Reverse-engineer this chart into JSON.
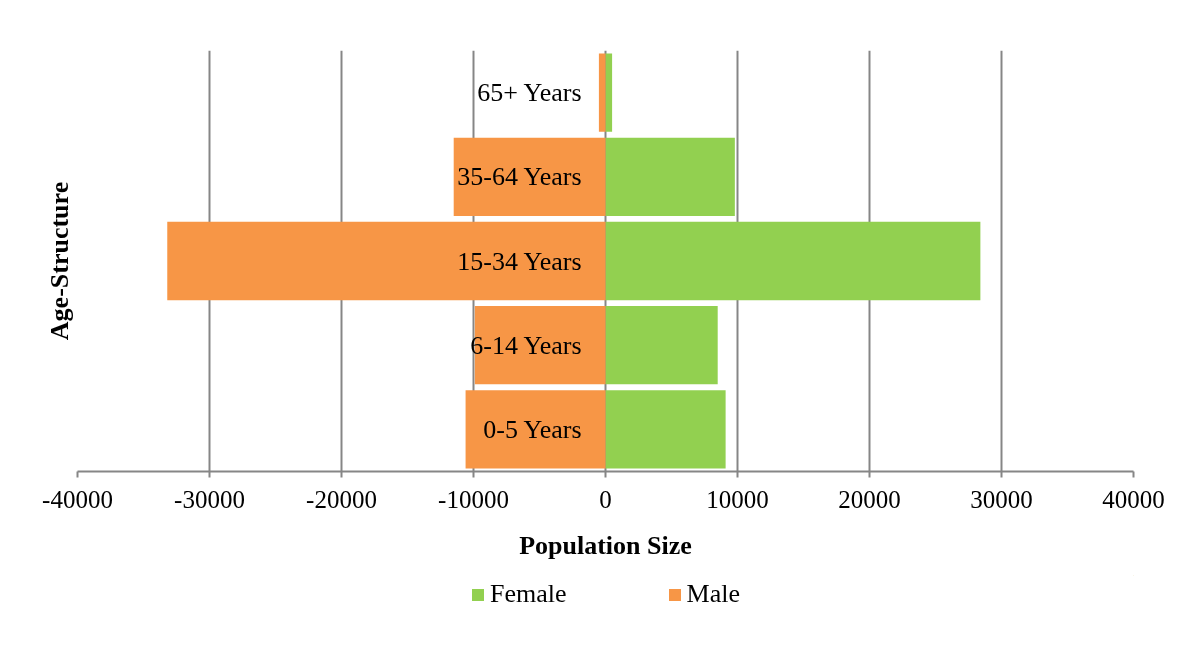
{
  "chart_data": {
    "type": "bar",
    "orientation": "horizontal",
    "stacked": true,
    "xlabel": "Population Size",
    "ylabel": "Age-Structure",
    "categories": [
      "65+ Years",
      "35-64 Years",
      "15-34 Years",
      "6-14 Years",
      "0-5 Years"
    ],
    "series": [
      {
        "name": "Female",
        "color": "#92d050",
        "values": [
          500,
          9800,
          28400,
          8500,
          9100
        ]
      },
      {
        "name": "Male",
        "color": "#f79646",
        "values": [
          -500,
          -11500,
          -33200,
          -9900,
          -10600
        ]
      }
    ],
    "xlim": [
      -40000,
      40000
    ],
    "xticks": [
      -40000,
      -30000,
      -20000,
      -10000,
      0,
      10000,
      20000,
      30000,
      40000
    ],
    "grid": "x",
    "legend": "bottom"
  }
}
